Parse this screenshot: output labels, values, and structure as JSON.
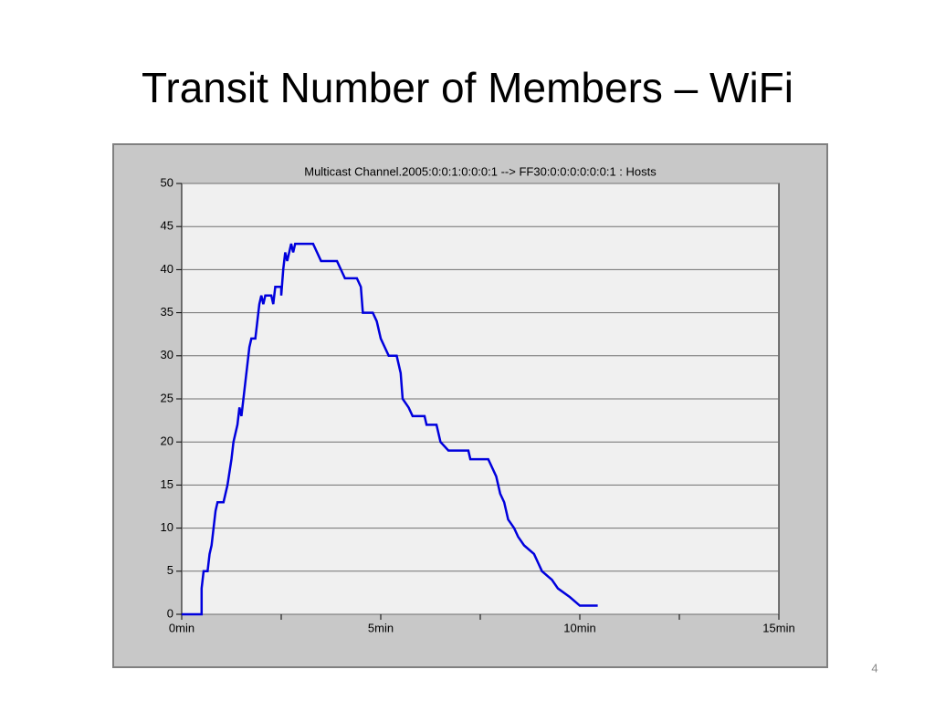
{
  "slide": {
    "title": "Transit Number of Members – WiFi",
    "page_number": "4"
  },
  "chart_data": {
    "type": "line",
    "title": "Multicast Channel.2005:0:0:1:0:0:0:1 --> FF30:0:0:0:0:0:0:1 : Hosts",
    "xlim": [
      0,
      15
    ],
    "xticks": [
      {
        "value": 0,
        "label": "0min"
      },
      {
        "value": 5,
        "label": "5min"
      },
      {
        "value": 10,
        "label": "10min"
      },
      {
        "value": 15,
        "label": "15min"
      }
    ],
    "xminorticks": [
      2.5,
      7.5,
      12.5
    ],
    "ylim": [
      0,
      50
    ],
    "yticks": [
      0,
      5,
      10,
      15,
      20,
      25,
      30,
      35,
      40,
      45,
      50
    ],
    "grid": true,
    "series": [
      {
        "color": "#0000dd",
        "x": [
          0,
          0.5,
          0.5,
          0.55,
          0.65,
          0.7,
          0.75,
          0.8,
          0.85,
          0.9,
          1.05,
          1.1,
          1.15,
          1.25,
          1.3,
          1.4,
          1.45,
          1.5,
          1.55,
          1.6,
          1.65,
          1.7,
          1.75,
          1.85,
          1.9,
          1.95,
          2.0,
          2.05,
          2.1,
          2.25,
          2.3,
          2.35,
          2.5,
          2.5,
          2.55,
          2.6,
          2.65,
          2.7,
          2.75,
          2.8,
          2.85,
          3.3,
          3.4,
          3.5,
          3.9,
          4.0,
          4.1,
          4.4,
          4.5,
          4.55,
          4.8,
          4.9,
          5.0,
          5.1,
          5.2,
          5.4,
          5.5,
          5.55,
          5.7,
          5.8,
          6.1,
          6.15,
          6.4,
          6.5,
          6.7,
          7.2,
          7.25,
          7.7,
          7.8,
          7.9,
          8.0,
          8.1,
          8.2,
          8.35,
          8.45,
          8.6,
          8.85,
          8.95,
          9.05,
          9.3,
          9.45,
          9.75,
          10.0,
          10.45
        ],
        "values": [
          0,
          0,
          3,
          5,
          5,
          7,
          8,
          10,
          12,
          13,
          13,
          14,
          15,
          18,
          20,
          22,
          24,
          23,
          25,
          27,
          29,
          31,
          32,
          32,
          34,
          36,
          37,
          36,
          37,
          37,
          36,
          38,
          38,
          37,
          40,
          42,
          41,
          42,
          43,
          42,
          43,
          43,
          42,
          41,
          41,
          40,
          39,
          39,
          38,
          35,
          35,
          34,
          32,
          31,
          30,
          30,
          28,
          25,
          24,
          23,
          23,
          22,
          22,
          20,
          19,
          19,
          18,
          18,
          17,
          16,
          14,
          13,
          11,
          10,
          9,
          8,
          7,
          6,
          5,
          4,
          3,
          2,
          1,
          1
        ]
      }
    ]
  }
}
